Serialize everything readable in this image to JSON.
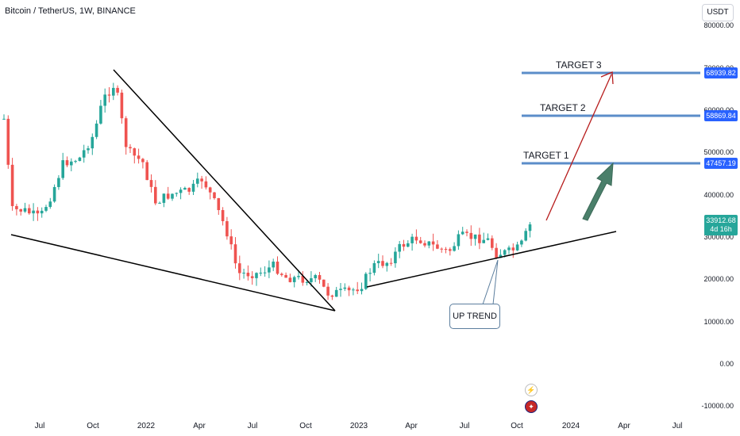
{
  "header": {
    "title": "Bitcoin / TetherUS, 1W, BINANCE",
    "currency_button": "USDT"
  },
  "axis": {
    "y_ticks": [
      "80000.00",
      "70000.00",
      "60000.00",
      "50000.00",
      "40000.00",
      "30000.00",
      "20000.00",
      "10000.00",
      "0.00",
      "-10000.00"
    ],
    "x_ticks": [
      "Jul",
      "Oct",
      "2022",
      "Apr",
      "Jul",
      "Oct",
      "2023",
      "Apr",
      "Jul",
      "Oct",
      "2024",
      "Apr",
      "Jul"
    ]
  },
  "targets": [
    {
      "label": "TARGET 3",
      "price": "68939.82"
    },
    {
      "label": "TARGET 2",
      "price": "58869.84"
    },
    {
      "label": "TARGET 1",
      "price": "47457.19"
    }
  ],
  "current_price": {
    "price": "33912.68",
    "countdown": "4d 16h"
  },
  "annotation": {
    "text": "UP TREND"
  },
  "colors": {
    "up": "#26a69a",
    "down": "#ef5350",
    "target_line": "#5b8dc9",
    "target_tag": "#2962ff",
    "trendline": "#000000",
    "arrow_red": "#b71c1c",
    "arrow_green": "#4a7f6a"
  },
  "icons": [
    "lightning-icon",
    "us-flag-icon"
  ]
}
